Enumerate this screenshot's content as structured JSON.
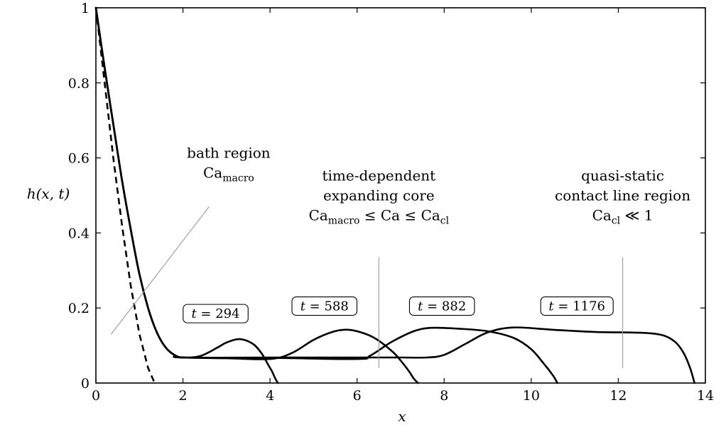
{
  "chart_data": {
    "type": "line",
    "title": "",
    "xlabel": "x",
    "ylabel": "h(x, t)",
    "xlim": [
      0,
      14
    ],
    "ylim": [
      0,
      1
    ],
    "xticks": [
      "0",
      "2",
      "4",
      "6",
      "8",
      "10",
      "12",
      "14"
    ],
    "yticks": [
      "0",
      "0.2",
      "0.4",
      "0.6",
      "0.8",
      "1"
    ],
    "grid": false,
    "series": [
      {
        "name": "t = 294",
        "x": [
          0,
          0.2,
          0.4,
          0.6,
          0.8,
          1.0,
          1.2,
          1.4,
          1.6,
          1.8,
          2.0,
          2.4,
          2.8,
          3.0,
          3.3,
          3.6,
          3.8,
          3.95,
          4.05,
          4.12,
          4.18
        ],
        "y": [
          1,
          0.84,
          0.69,
          0.54,
          0.41,
          0.29,
          0.2,
          0.135,
          0.095,
          0.075,
          0.068,
          0.072,
          0.095,
          0.108,
          0.117,
          0.105,
          0.08,
          0.05,
          0.03,
          0.012,
          0
        ]
      },
      {
        "name": "t = 588",
        "x": [
          0,
          0.2,
          0.4,
          0.6,
          0.8,
          1.0,
          1.2,
          1.4,
          1.6,
          1.8,
          2.0,
          3.0,
          4.0,
          4.5,
          5.0,
          5.4,
          5.7,
          6.0,
          6.4,
          6.8,
          7.0,
          7.2,
          7.3,
          7.4
        ],
        "y": [
          1,
          0.84,
          0.69,
          0.54,
          0.41,
          0.29,
          0.2,
          0.135,
          0.095,
          0.075,
          0.068,
          0.066,
          0.064,
          0.08,
          0.115,
          0.135,
          0.142,
          0.138,
          0.12,
          0.085,
          0.06,
          0.03,
          0.012,
          0
        ]
      },
      {
        "name": "t = 882",
        "x": [
          0,
          0.2,
          0.4,
          0.6,
          0.8,
          1.0,
          1.2,
          1.4,
          1.6,
          1.8,
          2.0,
          4.0,
          6.0,
          6.3,
          6.8,
          7.3,
          7.7,
          8.3,
          9.0,
          9.6,
          10.0,
          10.3,
          10.5,
          10.6
        ],
        "y": [
          1,
          0.84,
          0.69,
          0.54,
          0.41,
          0.29,
          0.2,
          0.135,
          0.095,
          0.075,
          0.068,
          0.067,
          0.064,
          0.073,
          0.11,
          0.138,
          0.147,
          0.145,
          0.138,
          0.12,
          0.09,
          0.05,
          0.02,
          0
        ]
      },
      {
        "name": "t = 1176",
        "x": [
          0,
          0.2,
          0.4,
          0.6,
          0.8,
          1.0,
          1.2,
          1.4,
          1.6,
          1.8,
          2.0,
          4.0,
          6.0,
          7.0,
          7.6,
          8.0,
          8.5,
          9.0,
          9.6,
          10.5,
          11.5,
          12.5,
          13.0,
          13.3,
          13.5,
          13.65,
          13.75
        ],
        "y": [
          1,
          0.84,
          0.69,
          0.54,
          0.41,
          0.29,
          0.2,
          0.135,
          0.095,
          0.075,
          0.068,
          0.068,
          0.068,
          0.068,
          0.068,
          0.075,
          0.105,
          0.135,
          0.148,
          0.142,
          0.136,
          0.134,
          0.128,
          0.11,
          0.08,
          0.04,
          0
        ]
      },
      {
        "name": "",
        "dashed": true,
        "x": [
          0,
          0.2,
          0.4,
          0.6,
          0.8,
          1.0,
          1.2,
          1.35
        ],
        "y": [
          1,
          0.8,
          0.6,
          0.42,
          0.26,
          0.13,
          0.04,
          0
        ]
      }
    ],
    "time_labels": [
      {
        "text": "t = 294",
        "x": 2.75,
        "y": 0.185
      },
      {
        "text": "t = 588",
        "x": 5.25,
        "y": 0.205
      },
      {
        "text": "t = 882",
        "x": 7.95,
        "y": 0.205
      },
      {
        "text": "t = 1176",
        "x": 11.05,
        "y": 0.205
      }
    ],
    "annotations": [
      {
        "lines": [
          "bath region",
          "Ca_macro"
        ],
        "x": 3.05,
        "y": 0.6,
        "leader": [
          [
            0.35,
            0.13
          ],
          [
            2.6,
            0.47
          ]
        ]
      },
      {
        "lines": [
          "time-dependent",
          "expanding core",
          "Ca_macro ≤ Ca ≤ Ca_cl"
        ],
        "x": 6.5,
        "y": 0.54,
        "leader": [
          [
            6.5,
            0.04
          ],
          [
            6.5,
            0.335
          ]
        ]
      },
      {
        "lines": [
          "quasi-static",
          "contact line region",
          "Ca_cl ≪ 1"
        ],
        "x": 12.1,
        "y": 0.54,
        "leader": [
          [
            12.1,
            0.04
          ],
          [
            12.1,
            0.335
          ]
        ]
      }
    ]
  }
}
